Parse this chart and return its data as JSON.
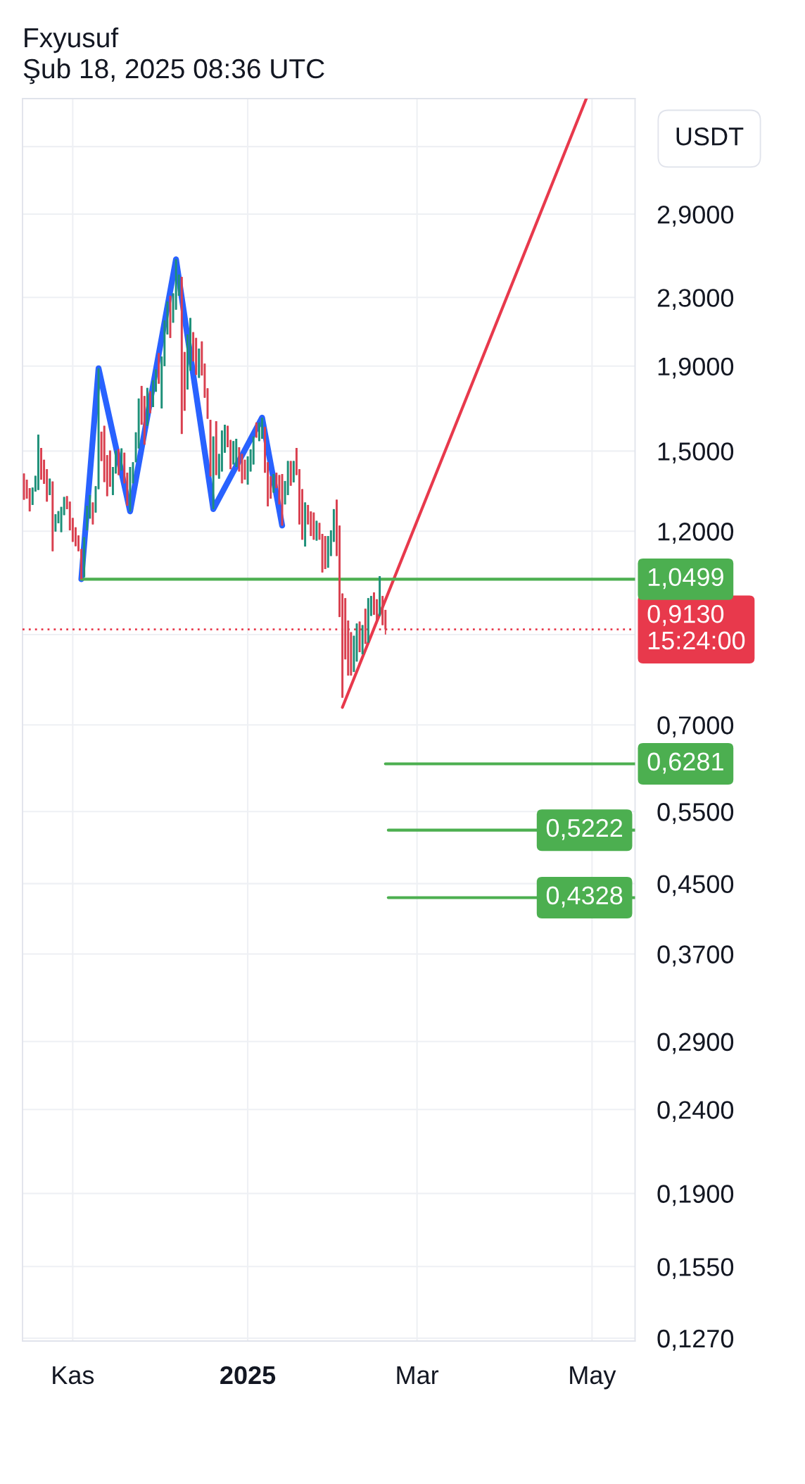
{
  "chart_data": {
    "type": "candlestick",
    "title": "Fxyusuf",
    "subtitle": "Şub 18, 2025 08:36 UTC",
    "ylabel": "USDT",
    "x": [
      "2024-10-15",
      "2024-10-16",
      "2024-10-17",
      "2024-10-18",
      "2024-10-19",
      "2024-10-20",
      "2024-10-21",
      "2024-10-22",
      "2024-10-23",
      "2024-10-24",
      "2024-10-25",
      "2024-10-26",
      "2024-10-27",
      "2024-10-28",
      "2024-10-29",
      "2024-10-30",
      "2024-10-31",
      "2024-11-01",
      "2024-11-02",
      "2024-11-03",
      "2024-11-04",
      "2024-11-05",
      "2024-11-06",
      "2024-11-07",
      "2024-11-08",
      "2024-11-09",
      "2024-11-10",
      "2024-11-11",
      "2024-11-12",
      "2024-11-13",
      "2024-11-14",
      "2024-11-15",
      "2024-11-16",
      "2024-11-17",
      "2024-11-18",
      "2024-11-19",
      "2024-11-20",
      "2024-11-21",
      "2024-11-22",
      "2024-11-23",
      "2024-11-24",
      "2024-11-25",
      "2024-11-26",
      "2024-11-27",
      "2024-11-28",
      "2024-11-29",
      "2024-11-30",
      "2024-12-01",
      "2024-12-02",
      "2024-12-03",
      "2024-12-04",
      "2024-12-05",
      "2024-12-06",
      "2024-12-07",
      "2024-12-08",
      "2024-12-09",
      "2024-12-10",
      "2024-12-11",
      "2024-12-12",
      "2024-12-13",
      "2024-12-14",
      "2024-12-15",
      "2024-12-16",
      "2024-12-17",
      "2024-12-18",
      "2024-12-19",
      "2024-12-20",
      "2024-12-21",
      "2024-12-22",
      "2024-12-23",
      "2024-12-24",
      "2024-12-25",
      "2024-12-26",
      "2024-12-27",
      "2024-12-28",
      "2024-12-29",
      "2024-12-30",
      "2024-12-31",
      "2025-01-01",
      "2025-01-02",
      "2025-01-03",
      "2025-01-04",
      "2025-01-05",
      "2025-01-06",
      "2025-01-07",
      "2025-01-08",
      "2025-01-09",
      "2025-01-10",
      "2025-01-11",
      "2025-01-12",
      "2025-01-13",
      "2025-01-14",
      "2025-01-15",
      "2025-01-16",
      "2025-01-17",
      "2025-01-18",
      "2025-01-19",
      "2025-01-20",
      "2025-01-21",
      "2025-01-22",
      "2025-01-23",
      "2025-01-24",
      "2025-01-25",
      "2025-01-26",
      "2025-01-27",
      "2025-01-28",
      "2025-01-29",
      "2025-01-30",
      "2025-01-31",
      "2025-02-01",
      "2025-02-02",
      "2025-02-03",
      "2025-02-04",
      "2025-02-05",
      "2025-02-06",
      "2025-02-07",
      "2025-02-08",
      "2025-02-09",
      "2025-02-10",
      "2025-02-11",
      "2025-02-12",
      "2025-02-13",
      "2025-02-14",
      "2025-02-15",
      "2025-02-16",
      "2025-02-17",
      "2025-02-18"
    ],
    "ohlc": [
      [
        1.409,
        1.409,
        1.31,
        1.31
      ],
      [
        1.385,
        1.385,
        1.314,
        1.314
      ],
      [
        1.353,
        1.353,
        1.268,
        1.268
      ],
      [
        1.291,
        1.355,
        1.291,
        1.355
      ],
      [
        1.34,
        1.4,
        1.34,
        1.4
      ],
      [
        1.346,
        1.57,
        1.346,
        1.57
      ],
      [
        1.513,
        1.513,
        1.385,
        1.385
      ],
      [
        1.464,
        1.464,
        1.369,
        1.369
      ],
      [
        1.426,
        1.426,
        1.303,
        1.303
      ],
      [
        1.327,
        1.389,
        1.327,
        1.389
      ],
      [
        1.378,
        1.378,
        1.135,
        1.135
      ],
      [
        1.199,
        1.258,
        1.199,
        1.258
      ],
      [
        1.227,
        1.269,
        1.227,
        1.269
      ],
      [
        1.197,
        1.284,
        1.197,
        1.284
      ],
      [
        1.255,
        1.32,
        1.255,
        1.32
      ],
      [
        1.323,
        1.323,
        1.276,
        1.276
      ],
      [
        1.303,
        1.303,
        1.203,
        1.203
      ],
      [
        1.245,
        1.245,
        1.165,
        1.165
      ],
      [
        1.213,
        1.213,
        1.151,
        1.151
      ],
      [
        1.186,
        1.186,
        1.135,
        1.135
      ],
      [
        1.142,
        1.142,
        1.05,
        1.05
      ],
      [
        1.056,
        1.18,
        1.056,
        1.18
      ],
      [
        1.203,
        1.288,
        1.203,
        1.288
      ],
      [
        1.243,
        1.327,
        1.243,
        1.327
      ],
      [
        1.3,
        1.3,
        1.223,
        1.223
      ],
      [
        1.264,
        1.36,
        1.264,
        1.36
      ],
      [
        1.349,
        1.888,
        1.349,
        1.888
      ],
      [
        1.583,
        1.583,
        1.459,
        1.459
      ],
      [
        1.609,
        1.609,
        1.376,
        1.376
      ],
      [
        1.483,
        1.483,
        1.323,
        1.323
      ],
      [
        1.502,
        1.502,
        1.358,
        1.358
      ],
      [
        1.327,
        1.435,
        1.327,
        1.435
      ],
      [
        1.409,
        1.502,
        1.409,
        1.502
      ],
      [
        1.508,
        1.508,
        1.403,
        1.403
      ],
      [
        1.421,
        1.511,
        1.421,
        1.511
      ],
      [
        1.493,
        1.493,
        1.371,
        1.371
      ],
      [
        1.412,
        1.412,
        1.288,
        1.288
      ],
      [
        1.268,
        1.435,
        1.268,
        1.435
      ],
      [
        1.371,
        1.454,
        1.371,
        1.454
      ],
      [
        1.454,
        1.58,
        1.454,
        1.58
      ],
      [
        1.511,
        1.736,
        1.511,
        1.736
      ],
      [
        1.798,
        1.798,
        1.614,
        1.614
      ],
      [
        1.748,
        1.748,
        1.527,
        1.527
      ],
      [
        1.609,
        1.788,
        1.609,
        1.788
      ],
      [
        1.771,
        1.771,
        1.667,
        1.667
      ],
      [
        1.695,
        1.827,
        1.695,
        1.827
      ],
      [
        1.769,
        1.882,
        1.769,
        1.882
      ],
      [
        1.97,
        1.97,
        1.809,
        1.809
      ],
      [
        1.689,
        1.951,
        1.689,
        1.951
      ],
      [
        1.9,
        2.158,
        1.9,
        2.158
      ],
      [
        2.075,
        2.274,
        2.075,
        2.274
      ],
      [
        2.311,
        2.311,
        2.055,
        2.055
      ],
      [
        2.144,
        2.326,
        2.144,
        2.326
      ],
      [
        2.223,
        2.558,
        2.223,
        2.558
      ],
      [
        2.311,
        2.451,
        2.311,
        2.451
      ],
      [
        2.435,
        2.435,
        1.573,
        1.573
      ],
      [
        1.976,
        1.976,
        1.678,
        1.678
      ],
      [
        1.78,
        2.075,
        1.78,
        2.075
      ],
      [
        1.876,
        2.172,
        1.876,
        2.172
      ],
      [
        2.088,
        2.088,
        1.925,
        1.925
      ],
      [
        2.055,
        2.055,
        1.854,
        1.854
      ],
      [
        1.839,
        1.995,
        1.839,
        1.995
      ],
      [
        2.035,
        2.035,
        1.851,
        1.851
      ],
      [
        1.913,
        1.913,
        1.74,
        1.74
      ],
      [
        1.786,
        1.786,
        1.641,
        1.641
      ],
      [
        1.636,
        1.636,
        1.398,
        1.398
      ],
      [
        1.276,
        1.562,
        1.276,
        1.562
      ],
      [
        1.63,
        1.63,
        1.403,
        1.403
      ],
      [
        1.389,
        1.488,
        1.389,
        1.488
      ],
      [
        1.417,
        1.588,
        1.417,
        1.588
      ],
      [
        1.493,
        1.614,
        1.493,
        1.614
      ],
      [
        1.609,
        1.609,
        1.516,
        1.516
      ],
      [
        1.547,
        1.547,
        1.426,
        1.426
      ],
      [
        1.445,
        1.542,
        1.445,
        1.542
      ],
      [
        1.435,
        1.552,
        1.435,
        1.552
      ],
      [
        1.516,
        1.516,
        1.417,
        1.417
      ],
      [
        1.488,
        1.488,
        1.371,
        1.371
      ],
      [
        1.464,
        1.464,
        1.385,
        1.385
      ],
      [
        1.366,
        1.478,
        1.366,
        1.478
      ],
      [
        1.417,
        1.507,
        1.417,
        1.507
      ],
      [
        1.445,
        1.562,
        1.445,
        1.562
      ],
      [
        1.624,
        1.624,
        1.557,
        1.557
      ],
      [
        1.542,
        1.624,
        1.542,
        1.624
      ],
      [
        1.552,
        1.646,
        1.552,
        1.646
      ],
      [
        1.604,
        1.604,
        1.412,
        1.412
      ],
      [
        1.454,
        1.454,
        1.286,
        1.286
      ],
      [
        1.398,
        1.398,
        1.314,
        1.314
      ],
      [
        1.336,
        1.407,
        1.336,
        1.407
      ],
      [
        1.412,
        1.412,
        1.353,
        1.353
      ],
      [
        1.403,
        1.403,
        1.293,
        1.293
      ],
      [
        1.407,
        1.407,
        1.219,
        1.219
      ],
      [
        1.293,
        1.38,
        1.293,
        1.38
      ],
      [
        1.327,
        1.459,
        1.327,
        1.459
      ],
      [
        1.459,
        1.459,
        1.362,
        1.362
      ],
      [
        1.375,
        1.459,
        1.375,
        1.459
      ],
      [
        1.513,
        1.513,
        1.403,
        1.403
      ],
      [
        1.426,
        1.426,
        1.223,
        1.223
      ],
      [
        1.349,
        1.349,
        1.172,
        1.172
      ],
      [
        1.15,
        1.3,
        1.15,
        1.3
      ],
      [
        1.291,
        1.291,
        1.223,
        1.223
      ],
      [
        1.268,
        1.268,
        1.184,
        1.184
      ],
      [
        1.264,
        1.264,
        1.172,
        1.172
      ],
      [
        1.169,
        1.235,
        1.169,
        1.235
      ],
      [
        1.228,
        1.228,
        1.172,
        1.172
      ],
      [
        1.191,
        1.191,
        1.07,
        1.07
      ],
      [
        1.184,
        1.184,
        1.08,
        1.08
      ],
      [
        1.084,
        1.184,
        1.084,
        1.184
      ],
      [
        1.12,
        1.203,
        1.12,
        1.203
      ],
      [
        1.165,
        1.276,
        1.165,
        1.276
      ],
      [
        1.31,
        1.31,
        1.12,
        1.12
      ],
      [
        1.219,
        1.219,
        0.945,
        0.945
      ],
      [
        1.009,
        1.009,
        0.755,
        0.755
      ],
      [
        0.996,
        0.996,
        0.84,
        0.84
      ],
      [
        0.936,
        0.936,
        0.803,
        0.803
      ],
      [
        0.906,
        0.906,
        0.803,
        0.803
      ],
      [
        0.811,
        0.897,
        0.811,
        0.897
      ],
      [
        0.835,
        0.928,
        0.835,
        0.928
      ],
      [
        0.933,
        0.933,
        0.857,
        0.857
      ],
      [
        0.852,
        0.924,
        0.852,
        0.924
      ],
      [
        0.967,
        0.967,
        0.877,
        0.877
      ],
      [
        0.88,
        0.996,
        0.88,
        0.996
      ],
      [
        0.948,
        1.002,
        0.948,
        1.002
      ],
      [
        1.012,
        1.012,
        0.951,
        0.951
      ],
      [
        0.993,
        0.993,
        0.936,
        0.936
      ],
      [
        0.948,
        1.059,
        0.948,
        1.059
      ],
      [
        1.002,
        1.002,
        0.924,
        0.924
      ],
      [
        0.964,
        0.964,
        0.9,
        0.913
      ]
    ],
    "colors": [
      "#d9404f",
      "#d9404f",
      "#d9404f",
      "#1e9079",
      "#1e9079",
      "#1e9079",
      "#d9404f",
      "#d9404f",
      "#d9404f",
      "#1e9079",
      "#d9404f",
      "#1e9079",
      "#1e9079",
      "#1e9079",
      "#1e9079",
      "#d9404f",
      "#d9404f",
      "#d9404f",
      "#d9404f",
      "#d9404f",
      "#d9404f",
      "#1e9079",
      "#1e9079",
      "#1e9079",
      "#d9404f",
      "#1e9079",
      "#1e9079",
      "#d9404f",
      "#d9404f",
      "#d9404f",
      "#d9404f",
      "#1e9079",
      "#1e9079",
      "#d9404f",
      "#1e9079",
      "#d9404f",
      "#d9404f",
      "#1e9079",
      "#1e9079",
      "#1e9079",
      "#1e9079",
      "#d9404f",
      "#d9404f",
      "#1e9079",
      "#d9404f",
      "#1e9079",
      "#1e9079",
      "#d9404f",
      "#1e9079",
      "#1e9079",
      "#1e9079",
      "#d9404f",
      "#1e9079",
      "#1e9079",
      "#1e9079",
      "#d9404f",
      "#d9404f",
      "#1e9079",
      "#1e9079",
      "#d9404f",
      "#d9404f",
      "#1e9079",
      "#d9404f",
      "#d9404f",
      "#d9404f",
      "#d9404f",
      "#1e9079",
      "#d9404f",
      "#1e9079",
      "#1e9079",
      "#1e9079",
      "#d9404f",
      "#d9404f",
      "#1e9079",
      "#1e9079",
      "#d9404f",
      "#d9404f",
      "#d9404f",
      "#1e9079",
      "#1e9079",
      "#1e9079",
      "#d9404f",
      "#1e9079",
      "#1e9079",
      "#d9404f",
      "#d9404f",
      "#d9404f",
      "#1e9079",
      "#d9404f",
      "#d9404f",
      "#d9404f",
      "#1e9079",
      "#1e9079",
      "#d9404f",
      "#1e9079",
      "#d9404f",
      "#d9404f",
      "#d9404f",
      "#1e9079",
      "#d9404f",
      "#d9404f",
      "#d9404f",
      "#1e9079",
      "#d9404f",
      "#d9404f",
      "#d9404f",
      "#1e9079",
      "#1e9079",
      "#1e9079",
      "#d9404f",
      "#d9404f",
      "#d9404f",
      "#d9404f",
      "#d9404f",
      "#d9404f",
      "#1e9079",
      "#1e9079",
      "#d9404f",
      "#1e9079",
      "#d9404f",
      "#1e9079",
      "#1e9079",
      "#d9404f",
      "#d9404f",
      "#1e9079",
      "#d9404f",
      "#d9404f"
    ],
    "series": [
      {
        "type": "line",
        "color": "#2962ff",
        "x": [
          "2024-11-04",
          "2024-11-10",
          "2024-11-21",
          "2024-12-07",
          "2024-12-20",
          "2025-01-06",
          "2025-01-13"
        ],
        "values": [
          1.0499,
          1.888,
          1.268,
          2.558,
          1.276,
          1.646,
          1.219
        ]
      },
      {
        "type": "line",
        "color": "#e8394c",
        "x": [
          "2025-02-03",
          "2025-04-29"
        ],
        "values": [
          0.735,
          4.0
        ]
      },
      {
        "type": "line",
        "color": "#4caf50",
        "x": [
          "2024-11-04",
          "2025-05-16"
        ],
        "values": [
          1.0499,
          1.0499
        ],
        "value_labels": [
          null,
          "1,0499"
        ]
      },
      {
        "type": "line",
        "color": "#4caf50",
        "x": [
          "2025-02-18",
          "2025-05-16"
        ],
        "values": [
          0.6281,
          0.6281
        ],
        "value_labels": [
          null,
          "0,6281"
        ]
      },
      {
        "type": "line",
        "color": "#4caf50",
        "x": [
          "2025-02-19",
          "2025-05-16"
        ],
        "values": [
          0.5222,
          0.5222
        ],
        "value_labels": [
          null,
          "0,5222"
        ]
      },
      {
        "type": "line",
        "color": "#4caf50",
        "x": [
          "2025-02-19",
          "2025-05-16"
        ],
        "values": [
          0.4328,
          0.4328
        ],
        "value_labels": [
          null,
          "0,4328"
        ]
      }
    ],
    "ref_lines": [
      {
        "axis": "y",
        "value": 0.913,
        "label": "0,9130\n15:24:00",
        "color": "#e8394c",
        "line_style": "dotted"
      }
    ],
    "xlim": [
      "2024-10-14T12:00",
      "2025-05-16"
    ],
    "ylim": [
      0.126,
      4.0
    ],
    "xticks": [
      {
        "value": "2024-11-01",
        "label": "Kas"
      },
      {
        "value": "2025-01-01",
        "label": "2025"
      },
      {
        "value": "2025-03-01",
        "label": "Mar"
      },
      {
        "value": "2025-05-01",
        "label": "May"
      }
    ],
    "yticks": [
      {
        "value": 3.5,
        "label": null
      },
      {
        "value": 2.9,
        "label": "2,9000"
      },
      {
        "value": 2.3,
        "label": "2,3000"
      },
      {
        "value": 1.9,
        "label": "1,9000"
      },
      {
        "value": 1.5,
        "label": "1,5000"
      },
      {
        "value": 1.2,
        "label": "1,2000"
      },
      {
        "value": 0.9,
        "label": null
      },
      {
        "value": 0.7,
        "label": "0,7000"
      },
      {
        "value": 0.55,
        "label": "0,5500"
      },
      {
        "value": 0.45,
        "label": "0,4500"
      },
      {
        "value": 0.37,
        "label": "0,3700"
      },
      {
        "value": 0.29,
        "label": "0,2900"
      },
      {
        "value": 0.24,
        "label": "0,2400"
      },
      {
        "value": 0.19,
        "label": "0,1900"
      },
      {
        "value": 0.155,
        "label": "0,1550"
      },
      {
        "value": 0.127,
        "label": "0,1270"
      }
    ],
    "log": "y",
    "grid": true
  }
}
